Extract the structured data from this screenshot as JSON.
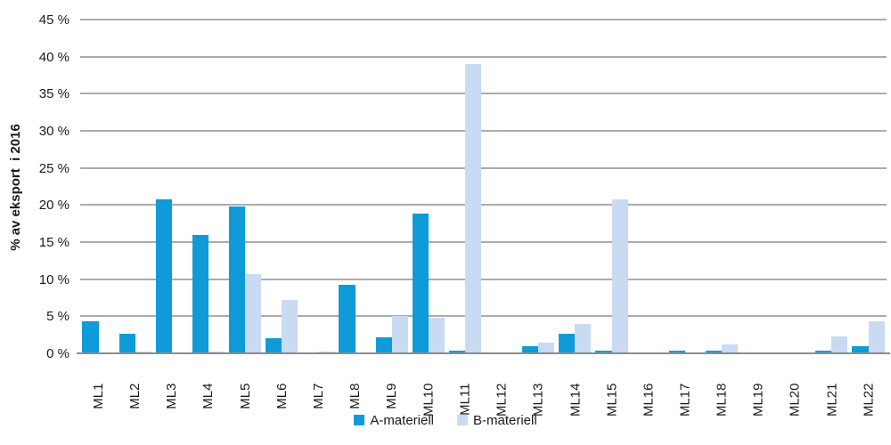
{
  "y_axis": {
    "title": "% av eksport  i 2016",
    "tick_labels": [
      "45 %",
      "40 %",
      "35 %",
      "30 %",
      "25 %",
      "20 %",
      "15 %",
      "10 %",
      "5 %",
      "0 %"
    ]
  },
  "colors": {
    "series_a": "#0e9bd8",
    "series_b": "#c9daf3",
    "gridline": "#ababab",
    "axis_line": "#8c8c8c",
    "text": "#1a1a1a"
  },
  "chart_data": {
    "type": "bar",
    "title": "",
    "xlabel": "",
    "ylabel": "% av eksport  i 2016",
    "ylim": [
      0,
      45
    ],
    "ytick_step": 5,
    "grid": true,
    "legend_position": "bottom-center",
    "categories": [
      "ML1",
      "ML2",
      "ML3",
      "ML4",
      "ML5",
      "ML6",
      "ML7",
      "ML8",
      "ML9",
      "ML10",
      "ML11",
      "ML12",
      "ML13",
      "ML14",
      "ML15",
      "ML16",
      "ML17",
      "ML18",
      "ML19",
      "ML20",
      "ML21",
      "ML22"
    ],
    "series": [
      {
        "name": "A-materiell",
        "color": "#0e9bd8",
        "values": [
          4.3,
          2.7,
          20.8,
          16.0,
          19.8,
          2.0,
          0,
          9.2,
          2.2,
          18.8,
          0.4,
          0,
          1.0,
          2.6,
          0.4,
          0,
          0.4,
          0.4,
          0,
          0,
          0.4,
          1.0
        ]
      },
      {
        "name": "B-materiell",
        "color": "#c9daf3",
        "values": [
          0,
          0.3,
          0,
          0.3,
          10.7,
          7.2,
          0.3,
          0,
          5.0,
          4.8,
          39.0,
          0,
          1.5,
          4.0,
          20.8,
          0,
          0,
          1.2,
          0,
          0,
          2.3,
          4.3
        ]
      }
    ]
  }
}
